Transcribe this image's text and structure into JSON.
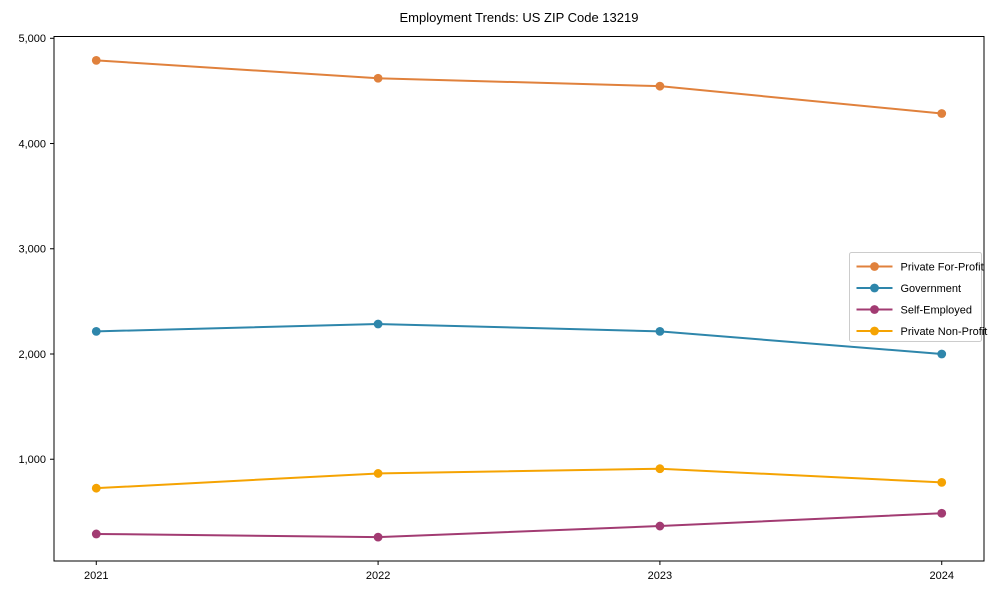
{
  "chart_data": {
    "type": "line",
    "title": "Employment Trends: US ZIP Code 13219",
    "xlabel": "",
    "ylabel": "",
    "x": [
      "2021",
      "2022",
      "2023",
      "2024"
    ],
    "series": [
      {
        "name": "Private For-Profit",
        "color": "#E0813C",
        "values": [
          4790,
          4620,
          4545,
          4285
        ]
      },
      {
        "name": "Government",
        "color": "#2E86AB",
        "values": [
          2215,
          2285,
          2215,
          2000
        ]
      },
      {
        "name": "Self-Employed",
        "color": "#A23B72",
        "values": [
          290,
          260,
          365,
          487
        ]
      },
      {
        "name": "Private Non-Profit",
        "color": "#F5A302",
        "values": [
          725,
          865,
          910,
          780
        ]
      }
    ],
    "yticks": [
      1000,
      2000,
      3000,
      4000,
      5000
    ],
    "ytick_labels": [
      "1,000",
      "2,000",
      "3,000",
      "4,000",
      "5,000"
    ],
    "ylim": [
      33,
      5017
    ],
    "grid": false,
    "legend_position": "center-right",
    "axis_color": "#000000",
    "background_color": "#ffffff"
  }
}
